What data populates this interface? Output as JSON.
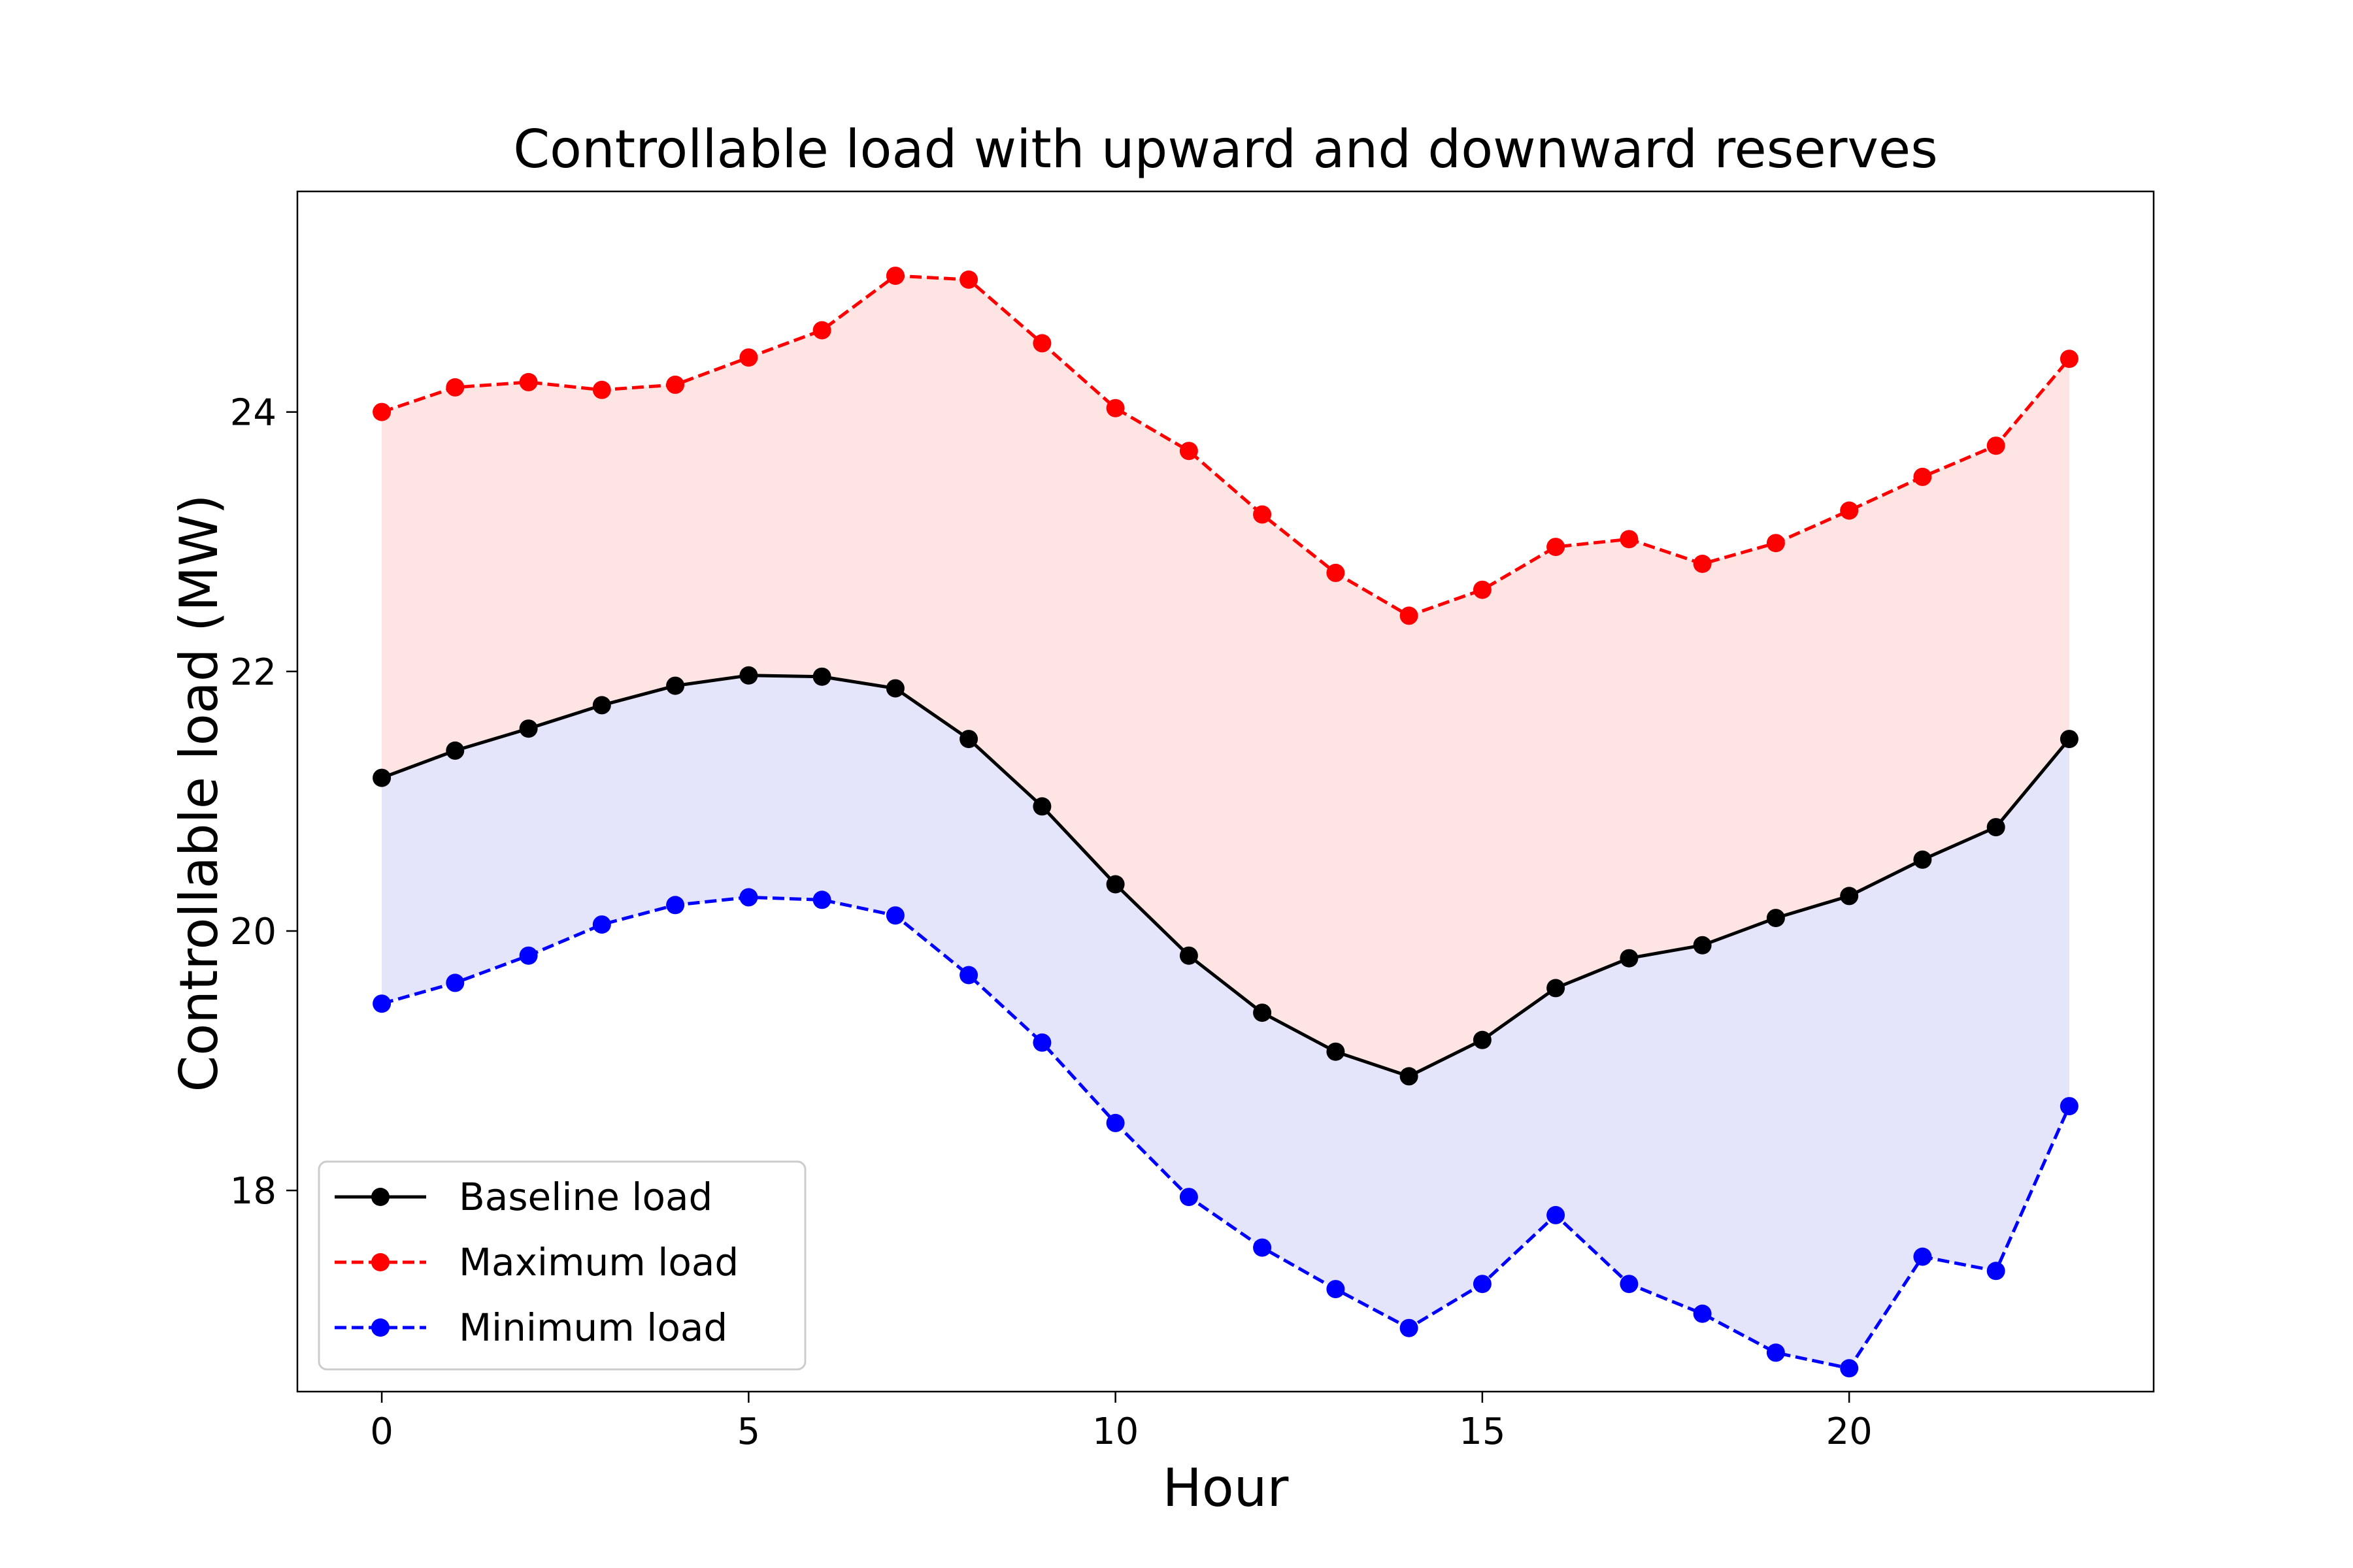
{
  "chart_data": {
    "type": "line",
    "title": "Controllable load with upward and downward reserves",
    "xlabel": "Hour",
    "ylabel": "Controllable load (MW)",
    "xlim": [
      -1.15,
      24.15
    ],
    "ylim": [
      16.45,
      25.7
    ],
    "xticks": [
      0,
      5,
      10,
      15,
      20
    ],
    "yticks": [
      18,
      20,
      22,
      24
    ],
    "legend_position": "lower-left",
    "grid": false,
    "x": [
      0,
      1,
      2,
      3,
      4,
      5,
      6,
      7,
      8,
      9,
      10,
      11,
      12,
      13,
      14,
      15,
      16,
      17,
      18,
      19,
      20,
      21,
      22,
      23
    ],
    "series": [
      {
        "name": "Baseline load",
        "color": "#000000",
        "linestyle": "solid",
        "values": [
          21.18,
          21.39,
          21.56,
          21.74,
          21.89,
          21.97,
          21.96,
          21.87,
          21.48,
          20.96,
          20.36,
          19.81,
          19.37,
          19.07,
          18.88,
          19.16,
          19.56,
          19.79,
          19.89,
          20.1,
          20.27,
          20.55,
          20.8,
          21.48
        ]
      },
      {
        "name": "Maximum load",
        "color": "#ff0000",
        "linestyle": "dashed",
        "values": [
          24.0,
          24.19,
          24.23,
          24.17,
          24.21,
          24.42,
          24.63,
          25.05,
          25.02,
          24.53,
          24.03,
          23.7,
          23.21,
          22.76,
          22.43,
          22.63,
          22.96,
          23.02,
          22.83,
          22.99,
          23.24,
          23.5,
          23.74,
          24.41
        ]
      },
      {
        "name": "Minimum load",
        "color": "#0000ff",
        "linestyle": "dashed",
        "values": [
          19.44,
          19.6,
          19.81,
          20.05,
          20.2,
          20.26,
          20.24,
          20.12,
          19.66,
          19.14,
          18.52,
          17.95,
          17.56,
          17.24,
          16.94,
          17.28,
          17.81,
          17.28,
          17.05,
          16.75,
          16.63,
          17.49,
          17.38,
          18.65
        ]
      }
    ],
    "fills": [
      {
        "between": [
          "Baseline load",
          "Maximum load"
        ],
        "color": "#ffe4e4"
      },
      {
        "between": [
          "Minimum load",
          "Baseline load"
        ],
        "color": "#e4e4fa"
      }
    ]
  }
}
